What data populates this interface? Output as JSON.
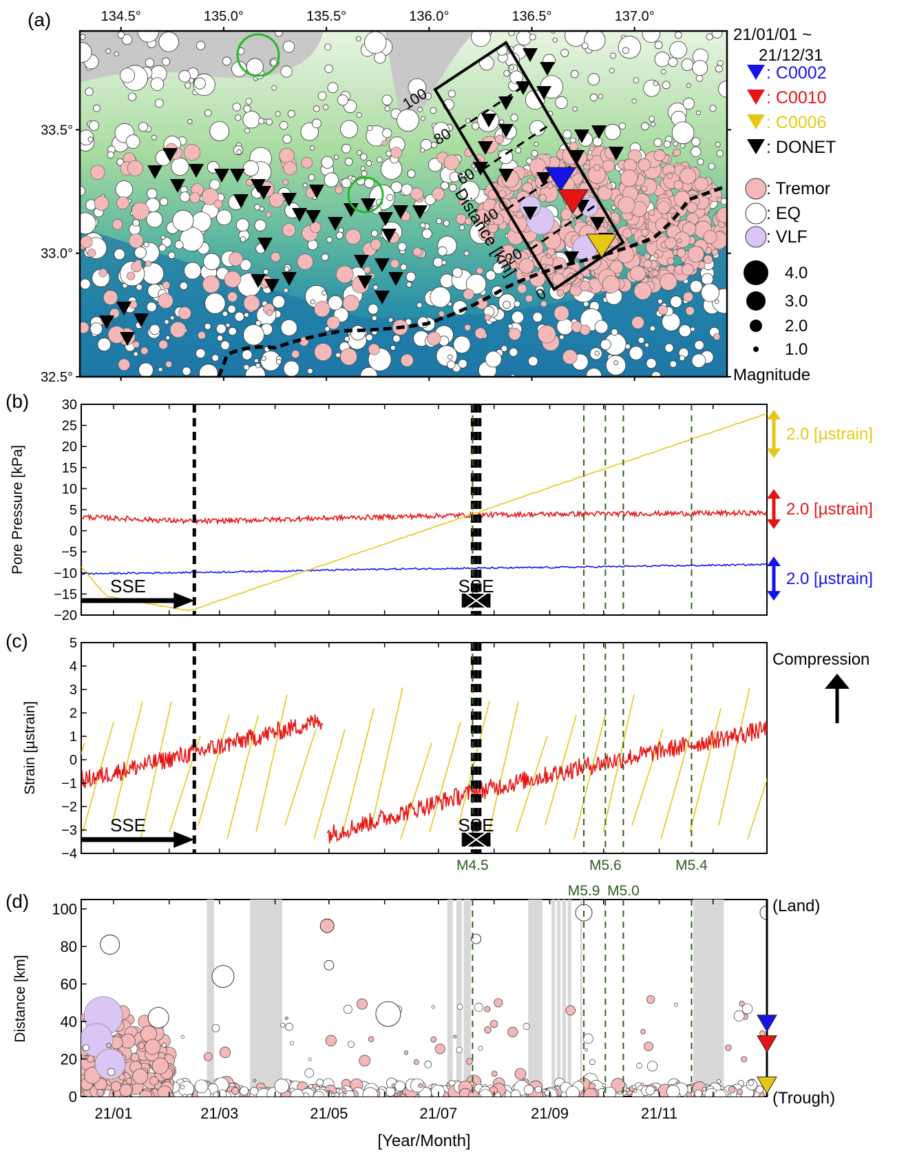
{
  "panels": {
    "a": {
      "letter": "(a)",
      "date_range_start": "21/01/01 ~",
      "date_range_end": "21/12/31",
      "lon_ticks": [
        "134.5°",
        "135.0°",
        "135.5°",
        "136.0°",
        "136.5°",
        "137.0°"
      ],
      "lat_ticks": [
        "33.5°",
        "33.0°",
        "32.5°"
      ],
      "profile_label": "Distance [km]",
      "profile_ticks": [
        "0",
        "20",
        "40",
        "60",
        "80",
        "100"
      ],
      "legend": [
        {
          "label": ": C0002",
          "color": "#1414e6",
          "kind": "triangle"
        },
        {
          "label": ": C0010",
          "color": "#e61414",
          "kind": "triangle"
        },
        {
          "label": ": C0006",
          "color": "#e6c814",
          "kind": "triangle"
        },
        {
          "label": ": DONET",
          "color": "#000000",
          "kind": "triangle"
        },
        {
          "label": ": Tremor",
          "color": "#f4b8b8",
          "kind": "circle"
        },
        {
          "label": ": EQ",
          "color": "#ffffff",
          "kind": "circle"
        },
        {
          "label": ": VLF",
          "color": "#d9c6f5",
          "kind": "circle"
        }
      ],
      "magnitudes": [
        "4.0",
        "3.0",
        "2.0",
        "1.0"
      ],
      "magnitude_title": "Magnitude"
    },
    "b": {
      "letter": "(b)",
      "ylabel": "Pore Pressure [kPa]",
      "yticks": [
        "30",
        "25",
        "20",
        "15",
        "10",
        "5",
        "0",
        "−5",
        "−10",
        "−15",
        "−20"
      ],
      "scale_labels": [
        {
          "text": "2.0 [µstrain]",
          "color": "#e6c814"
        },
        {
          "text": "2.0 [µstrain]",
          "color": "#e61414"
        },
        {
          "text": "2.0 [µstrain]",
          "color": "#1414e6"
        }
      ],
      "sse_labels": [
        "SSE",
        "SSE"
      ]
    },
    "c": {
      "letter": "(c)",
      "ylabel": "Strain [µstrain]",
      "yticks": [
        "5",
        "4",
        "3",
        "2",
        "1",
        "0",
        "−1",
        "−2",
        "−3",
        "−4"
      ],
      "compression_label": "Compression",
      "sse_labels": [
        "SSE",
        "SSE"
      ],
      "eq_labels": [
        "M4.5",
        "M5.9",
        "M5.6",
        "M5.0",
        "M5.4"
      ]
    },
    "d": {
      "letter": "(d)",
      "ylabel": "Distance [km]",
      "yticks": [
        "100",
        "80",
        "60",
        "40",
        "20",
        "0"
      ],
      "xticks": [
        "21/01",
        "21/03",
        "21/05",
        "21/07",
        "21/09",
        "21/11"
      ],
      "xlabel": "[Year/Month]",
      "land_label": "(Land)",
      "trough_label": "(Trough)"
    }
  },
  "colors": {
    "c0002": "#1414e6",
    "c0010": "#e61414",
    "c0006": "#e6c814",
    "tremor": "#f4b8b8",
    "vlf": "#d9c6f5",
    "eq_line": "#2e5e1e",
    "gap_band": "#d8d8d8"
  },
  "chart_data": [
    {
      "panel": "a",
      "type": "scatter",
      "title": "",
      "xlabel": "",
      "ylabel": "",
      "xlim": [
        134.3,
        137.45
      ],
      "ylim": [
        32.5,
        33.9
      ],
      "period": "2021-01-01 to 2021-12-31",
      "stations": [
        {
          "name": "C0002",
          "lon": 136.64,
          "lat": 33.3
        },
        {
          "name": "C0010",
          "lon": 136.7,
          "lat": 33.21
        },
        {
          "name": "C0006",
          "lon": 136.84,
          "lat": 33.03
        }
      ],
      "highlight_circles": [
        {
          "lon": 135.15,
          "lat": 33.84
        },
        {
          "lon": 135.66,
          "lat": 33.26
        }
      ]
    },
    {
      "panel": "b",
      "type": "line",
      "title": "",
      "ylabel": "Pore Pressure [kPa]",
      "xlim": [
        "2020-12-14",
        "2021-12-31"
      ],
      "ylim": [
        -20,
        30
      ],
      "series": [
        {
          "name": "C0010",
          "color": "#e61414",
          "x": [
            "2020-12-14",
            "2021-02-15",
            "2021-05-01",
            "2021-07-15",
            "2021-09-15",
            "2021-12-31"
          ],
          "y": [
            3.3,
            2.2,
            3.0,
            3.7,
            4.0,
            4.2
          ]
        },
        {
          "name": "C0002",
          "color": "#1414e6",
          "x": [
            "2020-12-14",
            "2021-03-01",
            "2021-06-01",
            "2021-09-01",
            "2021-12-31"
          ],
          "y": [
            -10.2,
            -9.8,
            -9.1,
            -8.7,
            -8.0
          ]
        },
        {
          "name": "C0006",
          "color": "#e6c814",
          "x": [
            "2020-12-14",
            "2020-12-28",
            "2021-02-12",
            "2021-07-20",
            "2021-12-31"
          ],
          "y": [
            -8.5,
            -15.5,
            -19.0,
            4.0,
            27.8
          ]
        }
      ],
      "vertical_lines": {
        "sse_dashed": [
          "2021-02-15",
          "2021-07-20",
          "2021-07-22",
          "2021-07-24"
        ],
        "eq_dashed": [
          "2021-07-20",
          "2021-09-20",
          "2021-10-02",
          "2021-10-12",
          "2021-11-19"
        ]
      },
      "sse_arrows": [
        {
          "start": "2020-12-14",
          "end": "2021-02-15"
        },
        {
          "start": "2021-07-14",
          "end": "2021-07-30"
        }
      ]
    },
    {
      "panel": "c",
      "type": "line",
      "title": "",
      "ylabel": "Strain [µstrain]",
      "xlim": [
        "2020-12-14",
        "2021-12-31"
      ],
      "ylim": [
        -4,
        5
      ],
      "series": [
        {
          "name": "C0010 (segment 1)",
          "color": "#e61414",
          "x": [
            "2020-12-14",
            "2021-02-15",
            "2021-04-28"
          ],
          "y": [
            -0.9,
            0.3,
            1.7
          ]
        },
        {
          "name": "C0010 (segment 2)",
          "color": "#e61414",
          "x": [
            "2021-04-30",
            "2021-07-20",
            "2021-09-20",
            "2021-12-31"
          ],
          "y": [
            -3.2,
            -1.4,
            -0.3,
            1.3
          ]
        }
      ],
      "annotations": [
        {
          "text": "M4.5",
          "x": "2021-07-20"
        },
        {
          "text": "M5.9",
          "x": "2021-09-20"
        },
        {
          "text": "M5.6",
          "x": "2021-10-02"
        },
        {
          "text": "M5.0",
          "x": "2021-10-12"
        },
        {
          "text": "M5.4",
          "x": "2021-11-19"
        }
      ]
    },
    {
      "panel": "d",
      "type": "scatter",
      "title": "",
      "xlabel": "[Year/Month]",
      "ylabel": "Distance [km]",
      "xlim": [
        "2020-12-14",
        "2021-12-31"
      ],
      "ylim": [
        0,
        105
      ],
      "station_distances": [
        {
          "name": "C0002",
          "distance": 39
        },
        {
          "name": "C0010",
          "distance": 28
        },
        {
          "name": "C0006",
          "distance": 6
        }
      ],
      "data_gaps": [
        [
          "2021-02-22",
          "2021-02-26"
        ],
        [
          "2021-03-18",
          "2021-04-05"
        ],
        [
          "2021-07-06",
          "2021-07-09"
        ],
        [
          "2021-07-11",
          "2021-07-14"
        ],
        [
          "2021-07-15",
          "2021-07-19"
        ],
        [
          "2021-08-20",
          "2021-08-28"
        ],
        [
          "2021-09-02",
          "2021-09-04"
        ],
        [
          "2021-09-05",
          "2021-09-07"
        ],
        [
          "2021-09-08",
          "2021-09-10"
        ],
        [
          "2021-09-11",
          "2021-09-13"
        ],
        [
          "2021-09-18",
          "2021-09-19"
        ],
        [
          "2021-11-20",
          "2021-12-07"
        ]
      ],
      "selected_events": [
        {
          "type": "EQ",
          "x": "2020-12-30",
          "distance": 81
        },
        {
          "type": "EQ",
          "x": "2021-01-26",
          "distance": 42
        },
        {
          "type": "EQ",
          "x": "2021-03-03",
          "distance": 64
        },
        {
          "type": "Tremor",
          "x": "2021-04-30",
          "distance": 91
        },
        {
          "type": "EQ",
          "x": "2021-05-01",
          "distance": 70
        },
        {
          "type": "EQ",
          "x": "2021-06-03",
          "distance": 44
        },
        {
          "type": "EQ",
          "x": "2021-07-22",
          "distance": 84
        },
        {
          "type": "EQ",
          "x": "2021-09-20",
          "distance": 98
        },
        {
          "type": "EQ",
          "x": "2021-12-31",
          "distance": 98
        }
      ]
    }
  ]
}
